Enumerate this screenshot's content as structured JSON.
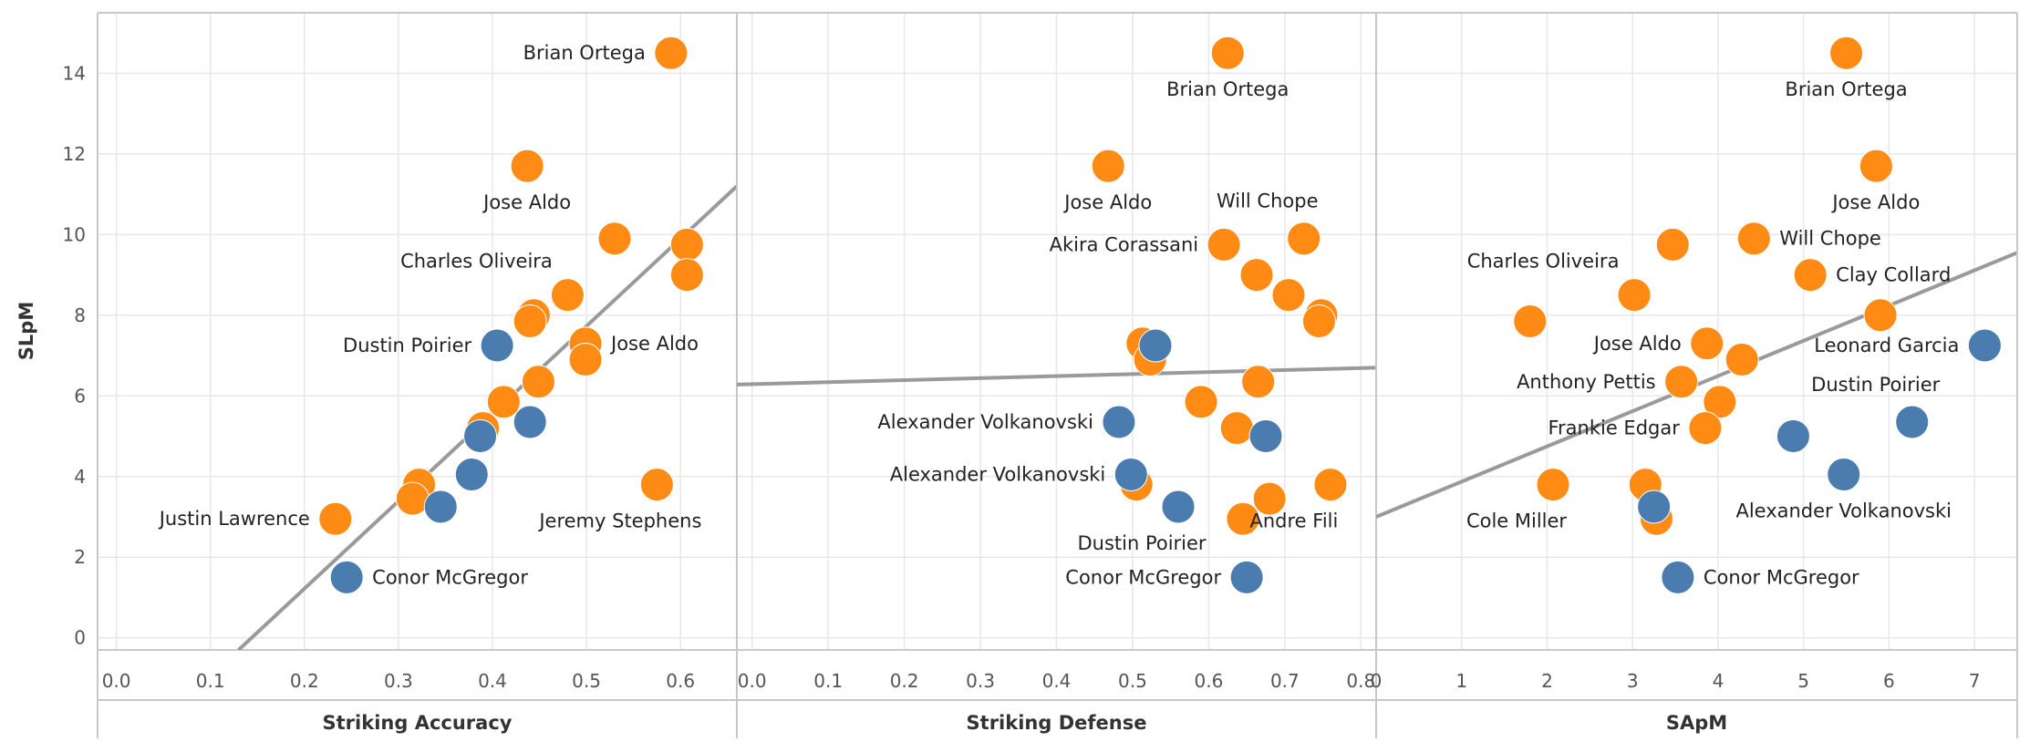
{
  "colors": {
    "orange": "#FF8B14",
    "blue": "#4A7CAF",
    "trend": "#9A9A9A"
  },
  "chart_data": {
    "type": "scatter",
    "ylabel": "SLpM",
    "ylim": [
      -0.3,
      15.5
    ],
    "yticks": [
      0,
      2,
      4,
      6,
      8,
      10,
      12,
      14
    ],
    "panels": [
      {
        "xlabel": "Striking Accuracy",
        "xlim": [
          -0.02,
          0.66
        ],
        "xticks": [
          "0.0",
          "0.1",
          "0.2",
          "0.3",
          "0.4",
          "0.5",
          "0.6"
        ],
        "trend": [
          [
            0.13,
            -0.3
          ],
          [
            0.66,
            11.2
          ]
        ],
        "points": [
          {
            "x": 0.59,
            "y": 14.5,
            "c": "orange",
            "label": "Brian Ortega",
            "lp": "left"
          },
          {
            "x": 0.437,
            "y": 11.7,
            "c": "orange",
            "label": "Jose Aldo",
            "lp": "below"
          },
          {
            "x": 0.53,
            "y": 9.9,
            "c": "orange"
          },
          {
            "x": 0.607,
            "y": 9.75,
            "c": "orange"
          },
          {
            "x": 0.607,
            "y": 9.0,
            "c": "orange"
          },
          {
            "x": 0.48,
            "y": 8.5,
            "c": "orange",
            "label": "Charles Oliveira",
            "lp": "upleft"
          },
          {
            "x": 0.444,
            "y": 8.0,
            "c": "orange"
          },
          {
            "x": 0.44,
            "y": 7.85,
            "c": "orange"
          },
          {
            "x": 0.499,
            "y": 7.3,
            "c": "orange",
            "label": "Jose Aldo",
            "lp": "right"
          },
          {
            "x": 0.499,
            "y": 6.9,
            "c": "orange"
          },
          {
            "x": 0.449,
            "y": 6.35,
            "c": "orange"
          },
          {
            "x": 0.412,
            "y": 5.85,
            "c": "orange"
          },
          {
            "x": 0.39,
            "y": 5.2,
            "c": "orange"
          },
          {
            "x": 0.322,
            "y": 3.8,
            "c": "orange"
          },
          {
            "x": 0.315,
            "y": 3.45,
            "c": "orange"
          },
          {
            "x": 0.575,
            "y": 3.8,
            "c": "orange",
            "label": "Jeremy Stephens",
            "lp": "belowleft"
          },
          {
            "x": 0.233,
            "y": 2.95,
            "c": "orange",
            "label": "Justin Lawrence",
            "lp": "left"
          },
          {
            "x": 0.405,
            "y": 7.25,
            "c": "blue",
            "label": "Dustin Poirier",
            "lp": "left"
          },
          {
            "x": 0.44,
            "y": 5.35,
            "c": "blue"
          },
          {
            "x": 0.387,
            "y": 5.0,
            "c": "blue"
          },
          {
            "x": 0.378,
            "y": 4.05,
            "c": "blue"
          },
          {
            "x": 0.345,
            "y": 3.25,
            "c": "blue"
          },
          {
            "x": 0.245,
            "y": 1.5,
            "c": "blue",
            "label": "Conor McGregor",
            "lp": "right"
          }
        ]
      },
      {
        "xlabel": "Striking Defense",
        "xlim": [
          -0.02,
          0.82
        ],
        "xticks": [
          "0.0",
          "0.1",
          "0.2",
          "0.3",
          "0.4",
          "0.5",
          "0.6",
          "0.7",
          "0.8"
        ],
        "trend": [
          [
            -0.02,
            6.28
          ],
          [
            0.82,
            6.7
          ]
        ],
        "points": [
          {
            "x": 0.625,
            "y": 14.5,
            "c": "orange",
            "label": "Brian Ortega",
            "lp": "below"
          },
          {
            "x": 0.468,
            "y": 11.7,
            "c": "orange",
            "label": "Jose Aldo",
            "lp": "below"
          },
          {
            "x": 0.725,
            "y": 9.9,
            "c": "orange",
            "label": "Will Chope",
            "lp": "upleft2"
          },
          {
            "x": 0.62,
            "y": 9.75,
            "c": "orange",
            "label": "Akira Corassani",
            "lp": "left"
          },
          {
            "x": 0.663,
            "y": 9.0,
            "c": "orange"
          },
          {
            "x": 0.705,
            "y": 8.5,
            "c": "orange"
          },
          {
            "x": 0.748,
            "y": 8.0,
            "c": "orange"
          },
          {
            "x": 0.745,
            "y": 7.85,
            "c": "orange"
          },
          {
            "x": 0.513,
            "y": 7.3,
            "c": "orange"
          },
          {
            "x": 0.523,
            "y": 6.9,
            "c": "orange"
          },
          {
            "x": 0.665,
            "y": 6.35,
            "c": "orange"
          },
          {
            "x": 0.59,
            "y": 5.85,
            "c": "orange"
          },
          {
            "x": 0.637,
            "y": 5.2,
            "c": "orange"
          },
          {
            "x": 0.505,
            "y": 3.8,
            "c": "orange"
          },
          {
            "x": 0.68,
            "y": 3.45,
            "c": "orange"
          },
          {
            "x": 0.76,
            "y": 3.8,
            "c": "orange",
            "label": "Andre Fili",
            "lp": "belowleft"
          },
          {
            "x": 0.645,
            "y": 2.95,
            "c": "orange"
          },
          {
            "x": 0.53,
            "y": 7.25,
            "c": "blue"
          },
          {
            "x": 0.482,
            "y": 5.35,
            "c": "blue",
            "label": "Alexander Volkanovski",
            "lp": "left"
          },
          {
            "x": 0.675,
            "y": 5.0,
            "c": "blue"
          },
          {
            "x": 0.498,
            "y": 4.05,
            "c": "blue",
            "label": "Alexander Volkanovski",
            "lp": "left"
          },
          {
            "x": 0.56,
            "y": 3.25,
            "c": "blue",
            "label": "Dustin Poirier",
            "lp": "belowleft"
          },
          {
            "x": 0.65,
            "y": 1.5,
            "c": "blue",
            "label": "Conor McGregor",
            "lp": "left"
          }
        ]
      },
      {
        "xlabel": "SApM",
        "xlim": [
          0,
          7.5
        ],
        "xticks": [
          "0",
          "1",
          "2",
          "3",
          "4",
          "5",
          "6",
          "7"
        ],
        "trend": [
          [
            0,
            3.0
          ],
          [
            7.5,
            9.55
          ]
        ],
        "points": [
          {
            "x": 5.5,
            "y": 14.5,
            "c": "orange",
            "label": "Brian Ortega",
            "lp": "below"
          },
          {
            "x": 5.85,
            "y": 11.7,
            "c": "orange",
            "label": "Jose Aldo",
            "lp": "below"
          },
          {
            "x": 4.42,
            "y": 9.9,
            "c": "orange",
            "label": "Will Chope",
            "lp": "right"
          },
          {
            "x": 3.47,
            "y": 9.75,
            "c": "orange"
          },
          {
            "x": 5.08,
            "y": 9.0,
            "c": "orange",
            "label": "Clay Collard",
            "lp": "right"
          },
          {
            "x": 3.02,
            "y": 8.5,
            "c": "orange",
            "label": "Charles Oliveira",
            "lp": "upleft"
          },
          {
            "x": 5.9,
            "y": 8.0,
            "c": "orange"
          },
          {
            "x": 1.8,
            "y": 7.85,
            "c": "orange"
          },
          {
            "x": 3.87,
            "y": 7.3,
            "c": "orange",
            "label": "Jose Aldo",
            "lp": "left"
          },
          {
            "x": 4.28,
            "y": 6.9,
            "c": "orange"
          },
          {
            "x": 3.57,
            "y": 6.35,
            "c": "orange",
            "label": "Anthony Pettis",
            "lp": "left"
          },
          {
            "x": 4.02,
            "y": 5.85,
            "c": "orange"
          },
          {
            "x": 3.85,
            "y": 5.2,
            "c": "orange",
            "label": "Frankie Edgar",
            "lp": "left"
          },
          {
            "x": 2.07,
            "y": 3.8,
            "c": "orange",
            "label": "Cole Miller",
            "lp": "belowleft"
          },
          {
            "x": 3.15,
            "y": 3.8,
            "c": "orange"
          },
          {
            "x": 3.28,
            "y": 2.95,
            "c": "orange"
          },
          {
            "x": 7.12,
            "y": 7.25,
            "c": "blue",
            "label": "Leonard Garcia",
            "lp": "left"
          },
          {
            "x": 6.27,
            "y": 5.35,
            "c": "blue",
            "label": "Dustin Poirier",
            "lp": "upleft2"
          },
          {
            "x": 4.88,
            "y": 5.0,
            "c": "blue"
          },
          {
            "x": 5.47,
            "y": 4.05,
            "c": "blue",
            "label": "Alexander Volkanovski",
            "lp": "below"
          },
          {
            "x": 3.25,
            "y": 3.25,
            "c": "blue"
          },
          {
            "x": 3.53,
            "y": 1.5,
            "c": "blue",
            "label": "Conor McGregor",
            "lp": "right"
          }
        ]
      }
    ]
  }
}
